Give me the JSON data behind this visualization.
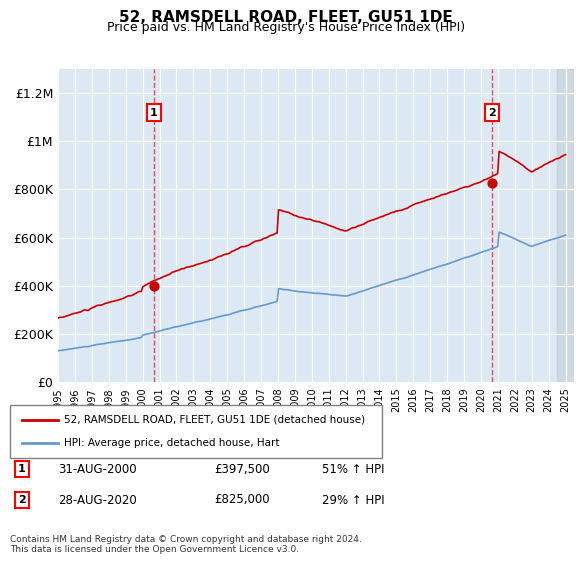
{
  "title": "52, RAMSDELL ROAD, FLEET, GU51 1DE",
  "subtitle": "Price paid vs. HM Land Registry's House Price Index (HPI)",
  "background_color": "#dce9f5",
  "plot_bg_color": "#dce9f5",
  "hpi_color": "#6699cc",
  "price_color": "#cc0000",
  "marker1_date_idx": 5.67,
  "marker1_value": 397500,
  "marker2_date_idx": 25.67,
  "marker2_value": 825000,
  "ylim": [
    0,
    1300000
  ],
  "yticks": [
    0,
    200000,
    400000,
    600000,
    800000,
    1000000,
    1200000
  ],
  "ytick_labels": [
    "£0",
    "£200K",
    "£400K",
    "£600K",
    "£800K",
    "£1M",
    "£1.2M"
  ],
  "xlabel_years": [
    "1995",
    "1996",
    "1997",
    "1998",
    "1999",
    "2000",
    "2001",
    "2002",
    "2003",
    "2004",
    "2005",
    "2006",
    "2007",
    "2008",
    "2009",
    "2010",
    "2011",
    "2012",
    "2013",
    "2014",
    "2015",
    "2016",
    "2017",
    "2018",
    "2019",
    "2020",
    "2021",
    "2022",
    "2023",
    "2024",
    "2025"
  ],
  "legend_line1": "52, RAMSDELL ROAD, FLEET, GU51 1DE (detached house)",
  "legend_line2": "HPI: Average price, detached house, Hart",
  "note1_label": "1",
  "note1_date": "31-AUG-2000",
  "note1_price": "£397,500",
  "note1_hpi": "51% ↑ HPI",
  "note2_label": "2",
  "note2_date": "28-AUG-2020",
  "note2_price": "£825,000",
  "note2_hpi": "29% ↑ HPI",
  "footer": "Contains HM Land Registry data © Crown copyright and database right 2024.\nThis data is licensed under the Open Government Licence v3.0."
}
